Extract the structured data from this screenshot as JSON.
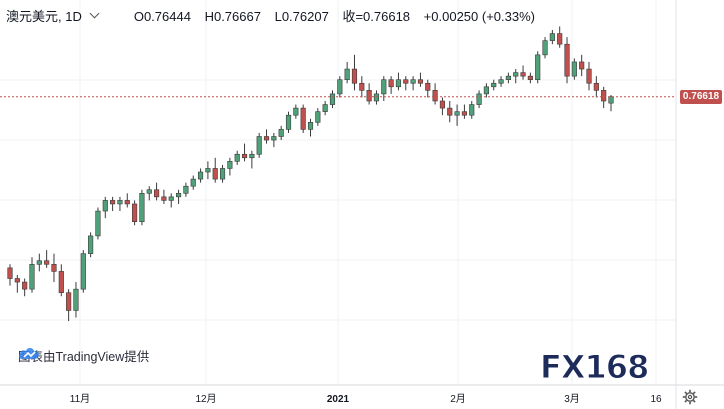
{
  "header": {
    "symbol": "澳元美元, 1D",
    "open": "O0.76444",
    "high": "H0.76667",
    "low": "L0.76207",
    "close": "收=0.76618",
    "change": "+0.00250 (+0.33%)"
  },
  "attribution": "图表由TradingView提供",
  "logo": "FX168",
  "last_price_label": "0.76618",
  "colors": {
    "up": "#50a07a",
    "down": "#c0504d",
    "grid": "#eef0f3",
    "priceline": "#c0504d"
  },
  "icons": {
    "settings": "gear-icon",
    "tradingview": "cloud-icon",
    "symbol_menu": "chevron-down-icon"
  },
  "chart_data": {
    "type": "candlestick",
    "x_tick_labels": [
      "11月",
      "12月",
      "2021",
      "2月",
      "3月",
      "16"
    ],
    "ylim": [
      0.685,
      0.785
    ],
    "last_price": 0.76618,
    "candles": [
      [
        0.718,
        0.719,
        0.713,
        0.715
      ],
      [
        0.715,
        0.716,
        0.711,
        0.714
      ],
      [
        0.714,
        0.715,
        0.71,
        0.712
      ],
      [
        0.712,
        0.721,
        0.711,
        0.719
      ],
      [
        0.719,
        0.722,
        0.717,
        0.72
      ],
      [
        0.72,
        0.723,
        0.718,
        0.719
      ],
      [
        0.719,
        0.722,
        0.714,
        0.717
      ],
      [
        0.717,
        0.719,
        0.71,
        0.711
      ],
      [
        0.711,
        0.712,
        0.703,
        0.706
      ],
      [
        0.706,
        0.714,
        0.704,
        0.712
      ],
      [
        0.712,
        0.723,
        0.711,
        0.722
      ],
      [
        0.722,
        0.728,
        0.721,
        0.727
      ],
      [
        0.727,
        0.735,
        0.726,
        0.734
      ],
      [
        0.734,
        0.738,
        0.732,
        0.737
      ],
      [
        0.737,
        0.738,
        0.734,
        0.736
      ],
      [
        0.736,
        0.738,
        0.734,
        0.737
      ],
      [
        0.737,
        0.739,
        0.735,
        0.736
      ],
      [
        0.736,
        0.737,
        0.73,
        0.731
      ],
      [
        0.731,
        0.74,
        0.73,
        0.739
      ],
      [
        0.739,
        0.741,
        0.737,
        0.74
      ],
      [
        0.74,
        0.742,
        0.737,
        0.738
      ],
      [
        0.738,
        0.74,
        0.736,
        0.737
      ],
      [
        0.737,
        0.739,
        0.735,
        0.738
      ],
      [
        0.738,
        0.74,
        0.736,
        0.739
      ],
      [
        0.739,
        0.742,
        0.738,
        0.741
      ],
      [
        0.741,
        0.744,
        0.74,
        0.743
      ],
      [
        0.743,
        0.746,
        0.742,
        0.745
      ],
      [
        0.745,
        0.748,
        0.743,
        0.746
      ],
      [
        0.746,
        0.749,
        0.742,
        0.743
      ],
      [
        0.743,
        0.747,
        0.742,
        0.746
      ],
      [
        0.746,
        0.749,
        0.744,
        0.748
      ],
      [
        0.748,
        0.751,
        0.747,
        0.75
      ],
      [
        0.75,
        0.753,
        0.748,
        0.749
      ],
      [
        0.749,
        0.751,
        0.746,
        0.75
      ],
      [
        0.75,
        0.756,
        0.749,
        0.755
      ],
      [
        0.755,
        0.757,
        0.753,
        0.754
      ],
      [
        0.754,
        0.756,
        0.752,
        0.755
      ],
      [
        0.755,
        0.758,
        0.754,
        0.757
      ],
      [
        0.757,
        0.762,
        0.756,
        0.761
      ],
      [
        0.761,
        0.764,
        0.76,
        0.763
      ],
      [
        0.763,
        0.764,
        0.756,
        0.757
      ],
      [
        0.757,
        0.76,
        0.755,
        0.759
      ],
      [
        0.759,
        0.763,
        0.758,
        0.762
      ],
      [
        0.762,
        0.765,
        0.761,
        0.764
      ],
      [
        0.764,
        0.768,
        0.763,
        0.767
      ],
      [
        0.767,
        0.772,
        0.766,
        0.771
      ],
      [
        0.771,
        0.776,
        0.77,
        0.774
      ],
      [
        0.774,
        0.778,
        0.768,
        0.77
      ],
      [
        0.77,
        0.772,
        0.766,
        0.768
      ],
      [
        0.768,
        0.77,
        0.764,
        0.765
      ],
      [
        0.765,
        0.768,
        0.764,
        0.767
      ],
      [
        0.767,
        0.772,
        0.765,
        0.771
      ],
      [
        0.771,
        0.772,
        0.767,
        0.769
      ],
      [
        0.769,
        0.773,
        0.768,
        0.771
      ],
      [
        0.771,
        0.772,
        0.768,
        0.77
      ],
      [
        0.77,
        0.772,
        0.768,
        0.771
      ],
      [
        0.771,
        0.773,
        0.769,
        0.77
      ],
      [
        0.77,
        0.771,
        0.766,
        0.768
      ],
      [
        0.768,
        0.77,
        0.764,
        0.765
      ],
      [
        0.765,
        0.766,
        0.761,
        0.763
      ],
      [
        0.763,
        0.765,
        0.759,
        0.761
      ],
      [
        0.761,
        0.764,
        0.758,
        0.762
      ],
      [
        0.762,
        0.764,
        0.76,
        0.761
      ],
      [
        0.761,
        0.765,
        0.76,
        0.764
      ],
      [
        0.764,
        0.768,
        0.763,
        0.767
      ],
      [
        0.767,
        0.77,
        0.766,
        0.769
      ],
      [
        0.769,
        0.771,
        0.768,
        0.77
      ],
      [
        0.77,
        0.772,
        0.769,
        0.771
      ],
      [
        0.771,
        0.773,
        0.77,
        0.772
      ],
      [
        0.772,
        0.774,
        0.77,
        0.773
      ],
      [
        0.773,
        0.775,
        0.771,
        0.772
      ],
      [
        0.772,
        0.773,
        0.77,
        0.771
      ],
      [
        0.771,
        0.779,
        0.77,
        0.778
      ],
      [
        0.778,
        0.783,
        0.777,
        0.782
      ],
      [
        0.782,
        0.785,
        0.781,
        0.784
      ],
      [
        0.784,
        0.786,
        0.78,
        0.781
      ],
      [
        0.781,
        0.783,
        0.77,
        0.772
      ],
      [
        0.772,
        0.777,
        0.771,
        0.776
      ],
      [
        0.776,
        0.778,
        0.772,
        0.774
      ],
      [
        0.774,
        0.776,
        0.768,
        0.77
      ],
      [
        0.77,
        0.772,
        0.766,
        0.768
      ],
      [
        0.768,
        0.769,
        0.763,
        0.765
      ],
      [
        0.7644,
        0.7667,
        0.7621,
        0.7662
      ]
    ]
  }
}
